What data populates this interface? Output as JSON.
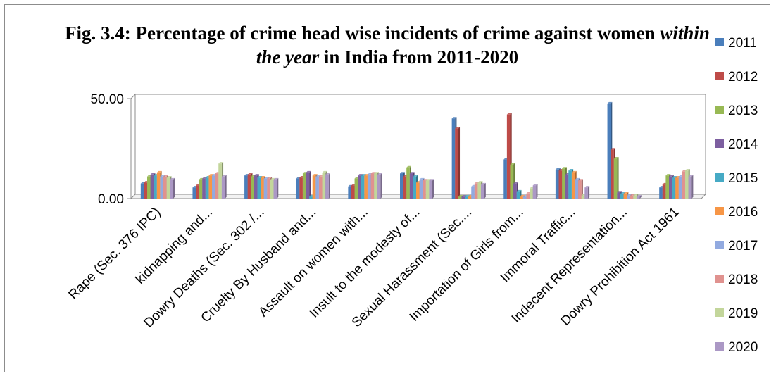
{
  "chart_data": {
    "type": "bar",
    "title_parts": [
      "Fig. 3.4: Percentage of crime head wise incidents of crime against women ",
      "within the year",
      " in India from 2011-2020"
    ],
    "xlabel": "",
    "ylabel": "",
    "ylim": [
      0,
      50
    ],
    "yticks": [
      "0.00",
      "50.00"
    ],
    "legend_position": "right",
    "grid": false,
    "categories": [
      "Rape (Sec. 376 IPC)",
      "kidnapping and...",
      "Dowry Deaths (Sec. 302 /...",
      "Cruelty By Husband and...",
      "Assault on women with...",
      "Insult to the modesty of...",
      "Sexual Harassment (Sec....",
      "Importation of Girls from...",
      "Immoral Traffic...",
      "Indecent Representation...",
      "Dowry Prohibition Act 1961"
    ],
    "series": [
      {
        "name": "2011",
        "color": "#4a7ebb",
        "values": [
          7.5,
          5.5,
          11.5,
          10,
          6,
          12.5,
          40,
          19.5,
          14.5,
          47.5,
          5.5
        ]
      },
      {
        "name": "2012",
        "color": "#be4b48",
        "values": [
          8,
          6.5,
          12,
          10.5,
          6.5,
          11,
          35,
          42,
          14,
          24.5,
          7
        ]
      },
      {
        "name": "2013",
        "color": "#98b954",
        "values": [
          11,
          9.5,
          11,
          12.5,
          10,
          15.5,
          1,
          17,
          15,
          20,
          11.5
        ]
      },
      {
        "name": "2014",
        "color": "#7d5fa0",
        "values": [
          12,
          10,
          11.5,
          13,
          11.5,
          12.5,
          1,
          7.5,
          12,
          3,
          11
        ]
      },
      {
        "name": "2015",
        "color": "#46aac5",
        "values": [
          11.5,
          10.5,
          10.5,
          1,
          11.5,
          11,
          1,
          3.5,
          14,
          2.5,
          10.5
        ]
      },
      {
        "name": "2016",
        "color": "#f79646",
        "values": [
          13,
          11.5,
          10.5,
          11.5,
          11.5,
          8,
          1,
          1,
          13,
          2.5,
          10.5
        ]
      },
      {
        "name": "2017",
        "color": "#92aae0",
        "values": [
          11,
          11.5,
          10,
          11,
          12,
          9.5,
          6,
          1,
          9.5,
          1.5,
          11
        ]
      },
      {
        "name": "2018",
        "color": "#e0928f",
        "values": [
          11,
          12.5,
          10,
          11,
          12.5,
          9,
          7.5,
          2.5,
          9,
          1.5,
          13.5
        ]
      },
      {
        "name": "2019",
        "color": "#c3d69b",
        "values": [
          10.5,
          17.5,
          9.5,
          13,
          12.5,
          9,
          8,
          5,
          1.5,
          1.5,
          14
        ]
      },
      {
        "name": "2020",
        "color": "#ab98c5",
        "values": [
          9.5,
          11,
          9.5,
          12,
          12,
          9,
          7,
          6.5,
          5.5,
          1,
          11
        ]
      }
    ]
  }
}
